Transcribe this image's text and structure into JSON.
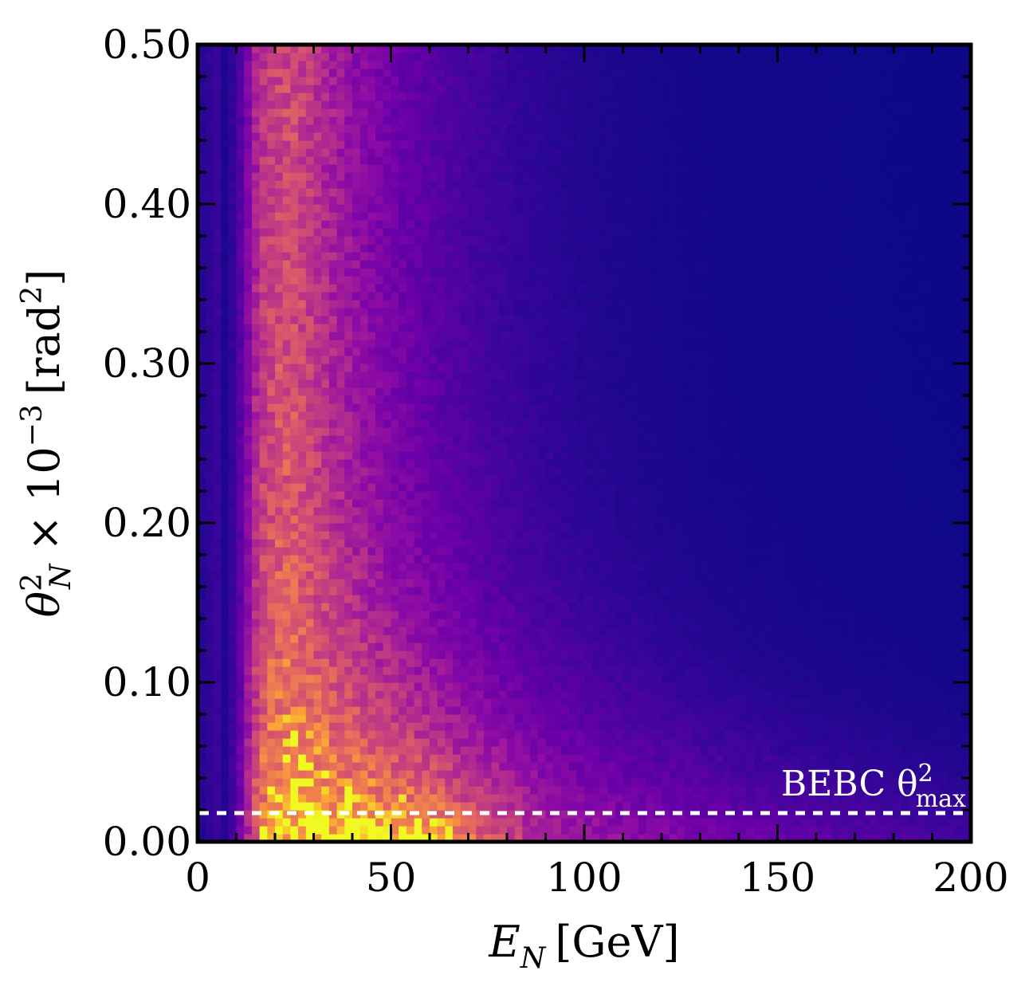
{
  "chart_data": {
    "type": "heatmap",
    "colormap": "plasma",
    "xlim": [
      0,
      200
    ],
    "ylim": [
      0,
      0.5
    ],
    "x_ticks": [
      0,
      50,
      100,
      150,
      200
    ],
    "x_tick_labels": [
      "0",
      "50",
      "100",
      "150",
      "200"
    ],
    "y_ticks": [
      0,
      0.1,
      0.2,
      0.3,
      0.4,
      0.5
    ],
    "y_tick_labels": [
      "0.00",
      "0.10",
      "0.20",
      "0.30",
      "0.40",
      "0.50"
    ],
    "xlabel": {
      "main": "E",
      "sub": "N",
      "unit": "[GeV]"
    },
    "ylabel": {
      "main": "θ",
      "sup": "2",
      "sub": "N",
      "mid": "× 10",
      "exp": "−3",
      "unit": "[rad",
      "unit_sup": "2",
      "unit_close": "]"
    },
    "grid": false,
    "bins": {
      "x": 100,
      "y": 100
    },
    "density_profile": {
      "peak_x": 25,
      "x_start": 13,
      "x_rise_scale": 2.2,
      "x_decay_scale": 30,
      "y_decay_scale": 0.15,
      "hot_region_x_range": [
        35,
        75
      ],
      "hot_region_y_max": 0.05
    },
    "annotations": [
      {
        "text": "BEBC θ",
        "sup": "2",
        "sub": "max",
        "line_style": "dashed",
        "line_color": "#ffffff",
        "y_value": 0.018
      }
    ]
  }
}
